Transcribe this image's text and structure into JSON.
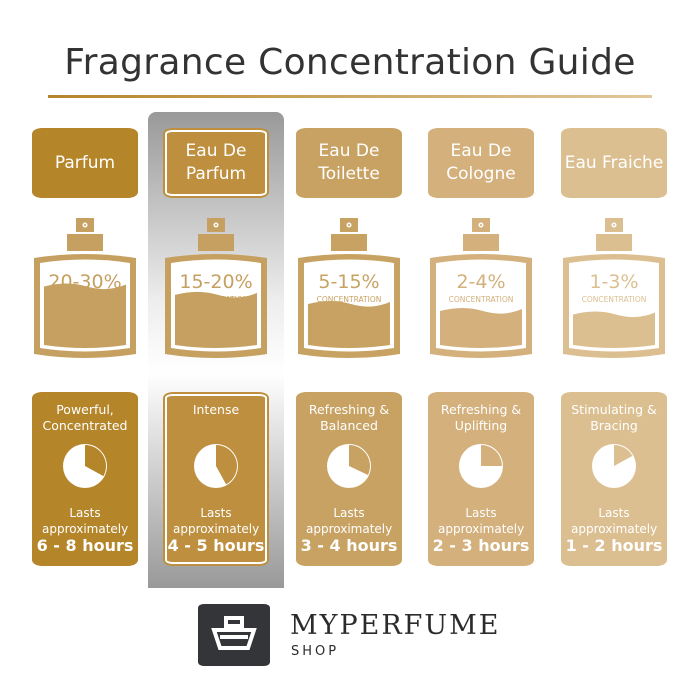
{
  "title": "Fragrance Concentration Guide",
  "concentration_label": "CONCENTRATION",
  "lasts_label": "Lasts approximately",
  "types": [
    {
      "name": "Parfum",
      "percent": "20-30%",
      "fill_level": 0.45,
      "description": "Powerful, Concentrated",
      "hours": "6 - 8 hours",
      "pie_fraction": 0.33,
      "color": "#b5852a",
      "bottle_color": "#c6a060",
      "highlighted": false
    },
    {
      "name": "Eau De Parfum",
      "percent": "15-20%",
      "fill_level": 0.33,
      "description": "Intense",
      "hours": "4 - 5 hours",
      "pie_fraction": 0.42,
      "color": "#bd8f3e",
      "bottle_color": "#c6a060",
      "highlighted": true
    },
    {
      "name": "Eau De Toilette",
      "percent": "5-15%",
      "fill_level": 0.2,
      "description": "Refreshing & Balanced",
      "hours": "3 - 4 hours",
      "pie_fraction": 0.32,
      "color": "#c8a263",
      "bottle_color": "#c8a263",
      "highlighted": false
    },
    {
      "name": "Eau De Cologne",
      "percent": "2-4%",
      "fill_level": 0.1,
      "description": "Refreshing & Uplifting",
      "hours": "2 - 3 hours",
      "pie_fraction": 0.25,
      "color": "#d3b07c",
      "bottle_color": "#d3b07c",
      "highlighted": false
    },
    {
      "name": "Eau Fraiche",
      "percent": "1-3%",
      "fill_level": 0.05,
      "description": "Stimulating & Bracing",
      "hours": "1 - 2 hours",
      "pie_fraction": 0.17,
      "color": "#dcbf91",
      "bottle_color": "#dcbf91",
      "highlighted": false
    }
  ],
  "logo": {
    "brand": "MYPERFUME",
    "sub": "SHOP"
  }
}
